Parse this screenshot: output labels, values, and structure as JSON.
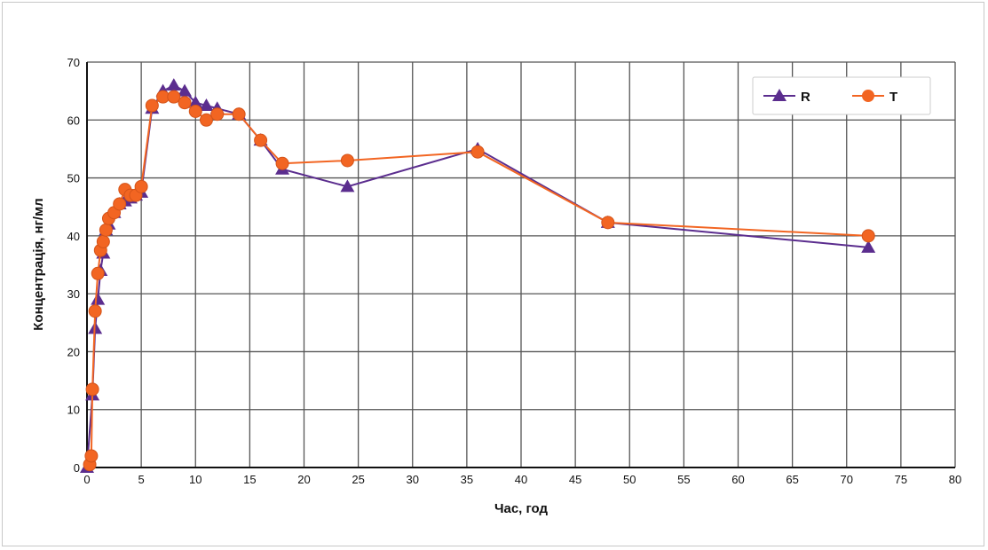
{
  "chart_data": {
    "type": "line",
    "title": "",
    "xlabel": "Час, год",
    "ylabel": "Концентрація, нг/мл",
    "xlim": [
      0,
      80
    ],
    "ylim": [
      0,
      70
    ],
    "xticks": [
      0,
      5,
      10,
      15,
      20,
      25,
      30,
      35,
      40,
      45,
      50,
      55,
      60,
      65,
      70,
      75,
      80
    ],
    "yticks": [
      0,
      10,
      20,
      30,
      40,
      50,
      60,
      70
    ],
    "grid": true,
    "legend_position": "top-right",
    "series": [
      {
        "name": "R",
        "color": "#5b2d8e",
        "marker": "triangle",
        "x": [
          0,
          0.5,
          0.75,
          1,
          1.25,
          1.5,
          1.75,
          2,
          2.5,
          3,
          3.5,
          4,
          4.5,
          5,
          6,
          7,
          8,
          9,
          10,
          11,
          12,
          14,
          16,
          18,
          24,
          36,
          48,
          72
        ],
        "y": [
          0,
          12.5,
          24,
          29,
          34,
          37,
          41,
          42,
          44,
          45.5,
          46,
          46.5,
          47,
          47.5,
          62,
          65,
          66,
          65,
          63,
          62.5,
          62,
          61,
          56.5,
          51.5,
          48.5,
          55,
          42.3,
          38
        ]
      },
      {
        "name": "T",
        "color": "#f26522",
        "marker": "circle",
        "x": [
          0.25,
          0.4,
          0.5,
          0.75,
          1,
          1.25,
          1.5,
          1.75,
          2,
          2.5,
          3,
          3.5,
          4,
          4.5,
          5,
          6,
          7,
          8,
          9,
          10,
          11,
          12,
          14,
          16,
          18,
          24,
          36,
          48,
          72
        ],
        "y": [
          0.5,
          2,
          13.5,
          27,
          33.5,
          37.5,
          39,
          41,
          43,
          44,
          45.5,
          48,
          47,
          47,
          48.5,
          62.5,
          64,
          64,
          63,
          61.5,
          60,
          61,
          61,
          56.5,
          52.5,
          53,
          54.5,
          42.3,
          40
        ]
      }
    ]
  }
}
